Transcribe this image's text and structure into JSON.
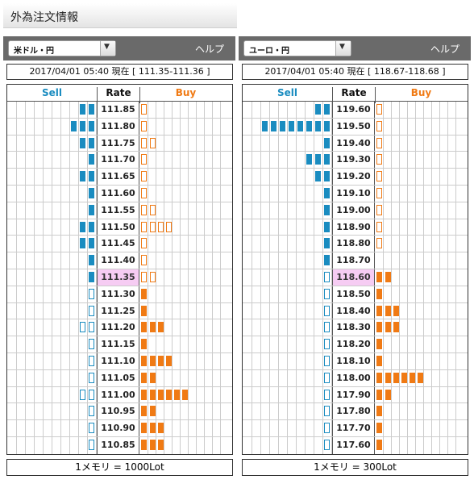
{
  "page_title": "外為注文情報",
  "colors": {
    "sell": "#1a8cc0",
    "buy": "#f07a14",
    "current_rate_bg": "#f6ccf3"
  },
  "panels": [
    {
      "pair": "米ドル・円",
      "help_label": "ヘルプ",
      "info": "2017/04/01  05:40 現在 [ 111.35-111.36 ]",
      "headers": {
        "sell": "Sell",
        "rate": "Rate",
        "buy": "Buy"
      },
      "current_rate": "111.35",
      "rows": [
        {
          "rate": "111.85",
          "sell": 2,
          "sell_type": "filled",
          "buy": 1,
          "buy_type": "hollow"
        },
        {
          "rate": "111.80",
          "sell": 3,
          "sell_type": "filled",
          "buy": 1,
          "buy_type": "hollow"
        },
        {
          "rate": "111.75",
          "sell": 2,
          "sell_type": "filled",
          "buy": 2,
          "buy_type": "hollow"
        },
        {
          "rate": "111.70",
          "sell": 1,
          "sell_type": "filled",
          "buy": 1,
          "buy_type": "hollow"
        },
        {
          "rate": "111.65",
          "sell": 2,
          "sell_type": "filled",
          "buy": 1,
          "buy_type": "hollow"
        },
        {
          "rate": "111.60",
          "sell": 1,
          "sell_type": "filled",
          "buy": 1,
          "buy_type": "hollow"
        },
        {
          "rate": "111.55",
          "sell": 1,
          "sell_type": "filled",
          "buy": 2,
          "buy_type": "hollow"
        },
        {
          "rate": "111.50",
          "sell": 2,
          "sell_type": "filled",
          "buy": 4,
          "buy_type": "hollow"
        },
        {
          "rate": "111.45",
          "sell": 2,
          "sell_type": "filled",
          "buy": 1,
          "buy_type": "hollow"
        },
        {
          "rate": "111.40",
          "sell": 1,
          "sell_type": "filled",
          "buy": 1,
          "buy_type": "hollow"
        },
        {
          "rate": "111.35",
          "sell": 1,
          "sell_type": "filled",
          "buy": 2,
          "buy_type": "hollow"
        },
        {
          "rate": "111.30",
          "sell": 1,
          "sell_type": "hollow",
          "buy": 1,
          "buy_type": "filled"
        },
        {
          "rate": "111.25",
          "sell": 1,
          "sell_type": "hollow",
          "buy": 1,
          "buy_type": "filled"
        },
        {
          "rate": "111.20",
          "sell": 2,
          "sell_type": "hollow",
          "buy": 3,
          "buy_type": "filled"
        },
        {
          "rate": "111.15",
          "sell": 1,
          "sell_type": "hollow",
          "buy": 1,
          "buy_type": "filled"
        },
        {
          "rate": "111.10",
          "sell": 1,
          "sell_type": "hollow",
          "buy": 4,
          "buy_type": "filled"
        },
        {
          "rate": "111.05",
          "sell": 1,
          "sell_type": "hollow",
          "buy": 2,
          "buy_type": "filled"
        },
        {
          "rate": "111.00",
          "sell": 2,
          "sell_type": "hollow",
          "buy": 6,
          "buy_type": "filled"
        },
        {
          "rate": "110.95",
          "sell": 1,
          "sell_type": "hollow",
          "buy": 2,
          "buy_type": "filled"
        },
        {
          "rate": "110.90",
          "sell": 1,
          "sell_type": "hollow",
          "buy": 3,
          "buy_type": "filled"
        },
        {
          "rate": "110.85",
          "sell": 1,
          "sell_type": "hollow",
          "buy": 3,
          "buy_type": "filled"
        }
      ],
      "footer": "1メモリ = 1000Lot"
    },
    {
      "pair": "ユーロ・円",
      "help_label": "ヘルプ",
      "info": "2017/04/01  05:40 現在 [ 118.67-118.68 ]",
      "headers": {
        "sell": "Sell",
        "rate": "Rate",
        "buy": "Buy"
      },
      "current_rate": "118.60",
      "rows": [
        {
          "rate": "119.60",
          "sell": 2,
          "sell_type": "filled",
          "buy": 1,
          "buy_type": "hollow"
        },
        {
          "rate": "119.50",
          "sell": 8,
          "sell_type": "filled",
          "buy": 1,
          "buy_type": "hollow"
        },
        {
          "rate": "119.40",
          "sell": 1,
          "sell_type": "filled",
          "buy": 1,
          "buy_type": "hollow"
        },
        {
          "rate": "119.30",
          "sell": 3,
          "sell_type": "filled",
          "buy": 1,
          "buy_type": "hollow"
        },
        {
          "rate": "119.20",
          "sell": 2,
          "sell_type": "filled",
          "buy": 1,
          "buy_type": "hollow"
        },
        {
          "rate": "119.10",
          "sell": 1,
          "sell_type": "filled",
          "buy": 1,
          "buy_type": "hollow"
        },
        {
          "rate": "119.00",
          "sell": 1,
          "sell_type": "filled",
          "buy": 1,
          "buy_type": "hollow"
        },
        {
          "rate": "118.90",
          "sell": 1,
          "sell_type": "filled",
          "buy": 1,
          "buy_type": "hollow"
        },
        {
          "rate": "118.80",
          "sell": 1,
          "sell_type": "filled",
          "buy": 1,
          "buy_type": "hollow"
        },
        {
          "rate": "118.70",
          "sell": 1,
          "sell_type": "filled",
          "buy": 0,
          "buy_type": "hollow"
        },
        {
          "rate": "118.60",
          "sell": 1,
          "sell_type": "hollow",
          "buy": 2,
          "buy_type": "filled"
        },
        {
          "rate": "118.50",
          "sell": 1,
          "sell_type": "hollow",
          "buy": 1,
          "buy_type": "filled"
        },
        {
          "rate": "118.40",
          "sell": 1,
          "sell_type": "hollow",
          "buy": 3,
          "buy_type": "filled"
        },
        {
          "rate": "118.30",
          "sell": 1,
          "sell_type": "hollow",
          "buy": 3,
          "buy_type": "filled"
        },
        {
          "rate": "118.20",
          "sell": 1,
          "sell_type": "hollow",
          "buy": 1,
          "buy_type": "filled"
        },
        {
          "rate": "118.10",
          "sell": 1,
          "sell_type": "hollow",
          "buy": 1,
          "buy_type": "filled"
        },
        {
          "rate": "118.00",
          "sell": 1,
          "sell_type": "hollow",
          "buy": 6,
          "buy_type": "filled"
        },
        {
          "rate": "117.90",
          "sell": 1,
          "sell_type": "hollow",
          "buy": 2,
          "buy_type": "filled"
        },
        {
          "rate": "117.80",
          "sell": 1,
          "sell_type": "hollow",
          "buy": 1,
          "buy_type": "filled"
        },
        {
          "rate": "117.70",
          "sell": 1,
          "sell_type": "hollow",
          "buy": 1,
          "buy_type": "filled"
        },
        {
          "rate": "117.60",
          "sell": 1,
          "sell_type": "hollow",
          "buy": 1,
          "buy_type": "filled"
        }
      ],
      "footer": "1メモリ = 300Lot"
    }
  ]
}
